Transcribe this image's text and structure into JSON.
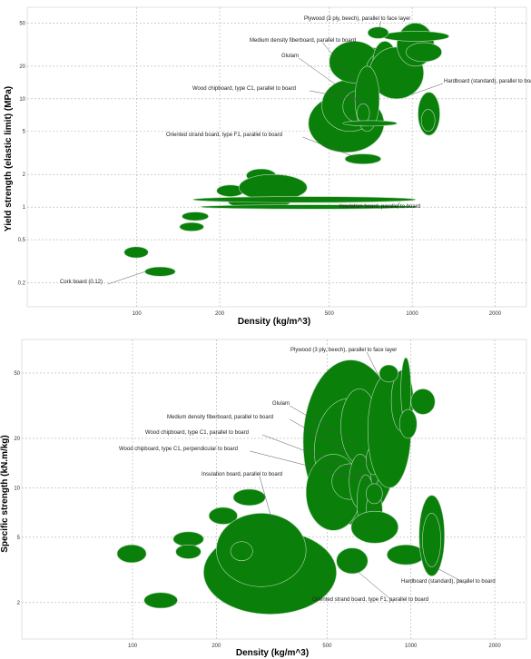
{
  "chart_data": [
    {
      "type": "bubble-range",
      "xlabel": "Density (kg/m^3)",
      "ylabel": "Yield strength (elastic limit) (MPa)",
      "xscale": "log",
      "yscale": "log",
      "xlim": [
        40,
        2600
      ],
      "ylim": [
        0.12,
        70
      ],
      "grid": true,
      "xticks": [
        100,
        200,
        500,
        1000,
        2000
      ],
      "yticks": [
        0.2,
        0.5,
        1,
        2,
        5,
        10,
        20,
        50
      ],
      "fill_color": "#0a7f0a",
      "edge_color": "#b8d8b8",
      "bubbles": [
        {
          "x": [
            90,
            110
          ],
          "y": [
            0.34,
            0.43
          ]
        },
        {
          "x": [
            107,
            138
          ],
          "y": [
            0.23,
            0.28
          ]
        },
        {
          "x": [
            143,
            175
          ],
          "y": [
            0.6,
            0.72
          ]
        },
        {
          "x": [
            146,
            182
          ],
          "y": [
            0.75,
            0.9
          ]
        },
        {
          "x": [
            195,
            245
          ],
          "y": [
            1.25,
            1.6
          ]
        },
        {
          "x": [
            250,
            320
          ],
          "y": [
            1.7,
            2.25
          ]
        },
        {
          "x": [
            215,
            360
          ],
          "y": [
            0.98,
            1.25
          ]
        },
        {
          "x": [
            235,
            415
          ],
          "y": [
            1.15,
            2.0
          ]
        },
        {
          "x": [
            170,
            1050
          ],
          "y": [
            0.96,
            1.05
          ]
        },
        {
          "x": [
            160,
            1030
          ],
          "y": [
            1.1,
            1.25
          ]
        },
        {
          "x": [
            420,
            790
          ],
          "y": [
            3.2,
            11
          ]
        },
        {
          "x": [
            470,
            750
          ],
          "y": [
            5,
            15
          ]
        },
        {
          "x": [
            560,
            740
          ],
          "y": [
            6,
            12
          ]
        },
        {
          "x": [
            600,
            900
          ],
          "y": [
            18,
            28
          ]
        },
        {
          "x": [
            550,
            860
          ],
          "y": [
            14,
            30
          ]
        },
        {
          "x": [
            500,
            760
          ],
          "y": [
            14,
            34
          ]
        },
        {
          "x": [
            680,
            1000
          ],
          "y": [
            12,
            28
          ]
        },
        {
          "x": [
            720,
            880
          ],
          "y": [
            14,
            34
          ]
        },
        {
          "x": [
            700,
            1100
          ],
          "y": [
            10,
            30
          ]
        },
        {
          "x": [
            880,
            1200
          ],
          "y": [
            20,
            50
          ]
        },
        {
          "x": [
            780,
            1360
          ],
          "y": [
            34,
            42
          ]
        },
        {
          "x": [
            950,
            1280
          ],
          "y": [
            22,
            33
          ]
        },
        {
          "x": [
            690,
            820
          ],
          "y": [
            36,
            46
          ]
        },
        {
          "x": [
            620,
            760
          ],
          "y": [
            5,
            20
          ]
        },
        {
          "x": [
            630,
            700
          ],
          "y": [
            6,
            9
          ]
        },
        {
          "x": [
            560,
            880
          ],
          "y": [
            5.6,
            6.3
          ]
        },
        {
          "x": [
            570,
            770
          ],
          "y": [
            2.5,
            3.1
          ]
        },
        {
          "x": [
            1050,
            1260
          ],
          "y": [
            4.6,
            11.5
          ]
        },
        {
          "x": [
            1080,
            1210
          ],
          "y": [
            5,
            8
          ]
        }
      ],
      "annotations": [
        {
          "text": "Plywood (3 ply, beech), parallel to face layer",
          "at": [
            760,
            40
          ]
        },
        {
          "text": "Medium density fiberboard, parallel to board",
          "at": [
            640,
            13
          ]
        },
        {
          "text": "Glulam",
          "at": [
            660,
            9
          ]
        },
        {
          "text": "Hardboard (standard), parallel to board",
          "at": [
            1000,
            11
          ]
        },
        {
          "text": "Wood chipboard, type C1, parallel to board",
          "at": [
            680,
            9.5
          ]
        },
        {
          "text": "Oriented strand board, type F1, parallel to board",
          "at": [
            620,
            2.9
          ]
        },
        {
          "text": "Insulation board, parallel to board",
          "at": [
            900,
            1.12
          ]
        },
        {
          "text": "Cork board (0.12)",
          "at": [
            108,
            0.255
          ]
        }
      ]
    },
    {
      "type": "bubble-range",
      "xlabel": "Density (kg/m^3)",
      "ylabel": "Specific strength (kN.m/kg)",
      "xscale": "log",
      "yscale": "log",
      "xlim": [
        40,
        2600
      ],
      "ylim": [
        1.2,
        80
      ],
      "grid": true,
      "xticks": [
        100,
        200,
        500,
        1000,
        2000
      ],
      "yticks": [
        2,
        5,
        10,
        20,
        50
      ],
      "fill_color": "#0a7f0a",
      "edge_color": "#b8d8b8",
      "bubbles": [
        {
          "x": [
            88,
            112
          ],
          "y": [
            3.5,
            4.5
          ]
        },
        {
          "x": [
            110,
            145
          ],
          "y": [
            1.85,
            2.3
          ]
        },
        {
          "x": [
            140,
            180
          ],
          "y": [
            4.4,
            5.4
          ]
        },
        {
          "x": [
            143,
            176
          ],
          "y": [
            3.7,
            4.5
          ]
        },
        {
          "x": [
            188,
            238
          ],
          "y": [
            6.0,
            7.6
          ]
        },
        {
          "x": [
            230,
            300
          ],
          "y": [
            7.8,
            9.8
          ]
        },
        {
          "x": [
            180,
            540
          ],
          "y": [
            1.7,
            5.5
          ]
        },
        {
          "x": [
            200,
            420
          ],
          "y": [
            2.5,
            7.0
          ]
        },
        {
          "x": [
            225,
            270
          ],
          "y": [
            3.6,
            4.7
          ]
        },
        {
          "x": [
            410,
            900
          ],
          "y": [
            6.0,
            60
          ]
        },
        {
          "x": [
            450,
            800
          ],
          "y": [
            8.0,
            35
          ]
        },
        {
          "x": [
            420,
            660
          ],
          "y": [
            5.5,
            16
          ]
        },
        {
          "x": [
            560,
            760
          ],
          "y": [
            14,
            40
          ]
        },
        {
          "x": [
            520,
            700
          ],
          "y": [
            8.5,
            14
          ]
        },
        {
          "x": [
            600,
            720
          ],
          "y": [
            7.5,
            16
          ]
        },
        {
          "x": [
            640,
            740
          ],
          "y": [
            5.5,
            12
          ]
        },
        {
          "x": [
            690,
            790
          ],
          "y": [
            5.5,
            9.5
          ]
        },
        {
          "x": [
            690,
            790
          ],
          "y": [
            8.0,
            10.6
          ]
        },
        {
          "x": [
            690,
            780
          ],
          "y": [
            12,
            18
          ]
        },
        {
          "x": [
            700,
            1000
          ],
          "y": [
            10,
            50
          ]
        },
        {
          "x": [
            850,
            1020
          ],
          "y": [
            22,
            52
          ]
        },
        {
          "x": [
            920,
            1000
          ],
          "y": [
            25,
            62
          ]
        },
        {
          "x": [
            1000,
            1220
          ],
          "y": [
            28,
            40
          ]
        },
        {
          "x": [
            910,
            1050
          ],
          "y": [
            20,
            30
          ]
        },
        {
          "x": [
            770,
            900
          ],
          "y": [
            44,
            56
          ]
        },
        {
          "x": [
            610,
            900
          ],
          "y": [
            4.6,
            7.2
          ]
        },
        {
          "x": [
            540,
            700
          ],
          "y": [
            3.0,
            4.3
          ]
        },
        {
          "x": [
            820,
            1120
          ],
          "y": [
            3.4,
            4.5
          ]
        },
        {
          "x": [
            1070,
            1320
          ],
          "y": [
            2.9,
            9.0
          ]
        },
        {
          "x": [
            1100,
            1280
          ],
          "y": [
            3.3,
            7.0
          ]
        }
      ],
      "annotations": [
        {
          "text": "Plywood (3 ply, beech), parallel to face layer",
          "at": [
            780,
            45
          ]
        },
        {
          "text": "Glulam",
          "at": [
            650,
            18
          ]
        },
        {
          "text": "Medium density fiberboard, parallel to board",
          "at": [
            700,
            14
          ]
        },
        {
          "text": "Wood chipboard, type C1, parallel to board",
          "at": [
            705,
            12
          ]
        },
        {
          "text": "Wood chipboard, type C1, perpendicular to board",
          "at": [
            705,
            11
          ]
        },
        {
          "text": "Insulation board, parallel to board",
          "at": [
            320,
            6.0
          ]
        },
        {
          "text": "Hardboard (standard), parallel to board",
          "at": [
            1140,
            3.5
          ]
        },
        {
          "text": "Oriented strand board, type F1, parallel to board",
          "at": [
            615,
            3.3
          ]
        }
      ]
    }
  ]
}
